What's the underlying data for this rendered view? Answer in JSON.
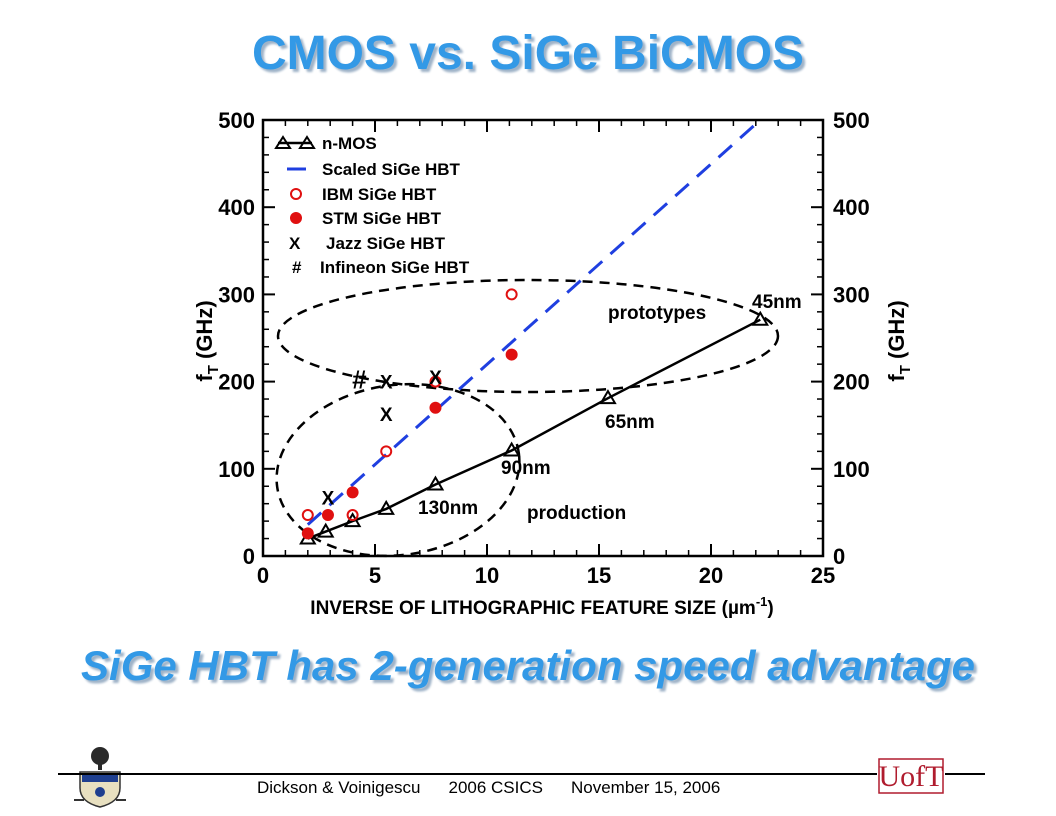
{
  "slide": {
    "title": "CMOS vs. SiGe BiCMOS",
    "subtitle": "SiGe HBT has 2-generation speed advantage"
  },
  "footer": {
    "authors": "Dickson & Voinigescu",
    "conference": "2006 CSICS",
    "date": "November 15, 2006"
  },
  "logos": {
    "uoft_text": "UofT",
    "uoft_color": "#b01c2e"
  },
  "chart_data": {
    "type": "scatter",
    "xlabel": "INVERSE OF LITHOGRAPHIC FEATURE SIZE (µm",
    "xlabel_exp": "-1",
    "ylabel": "f",
    "ylabel_sub": "T",
    "ylabel_rest": " (GHz)",
    "xlim": [
      0,
      25
    ],
    "ylim": [
      0,
      500
    ],
    "xticks": [
      0,
      5,
      10,
      15,
      20,
      25
    ],
    "yticks": [
      0,
      100,
      200,
      300,
      400,
      500
    ],
    "legend_position": "top-left",
    "series": [
      {
        "name": "n-MOS",
        "marker": "triangle-line",
        "color": "#000000",
        "points": [
          [
            2,
            20
          ],
          [
            2.8,
            28
          ],
          [
            4,
            40
          ],
          [
            5.5,
            54
          ],
          [
            7.7,
            82
          ],
          [
            11.1,
            121
          ],
          [
            15.4,
            181
          ],
          [
            22.2,
            271
          ]
        ]
      },
      {
        "name": "Scaled SiGe HBT",
        "marker": "dashed-line",
        "color": "#1f3fe0",
        "points": [
          [
            2,
            36
          ],
          [
            22.2,
            500
          ]
        ]
      },
      {
        "name": "IBM SiGe HBT",
        "marker": "open-circle",
        "color": "#e01010",
        "points": [
          [
            2,
            47
          ],
          [
            4,
            47
          ],
          [
            5.5,
            120
          ],
          [
            7.7,
            200
          ],
          [
            11.1,
            300
          ]
        ]
      },
      {
        "name": "STM SiGe HBT",
        "marker": "filled-circle",
        "color": "#e01010",
        "points": [
          [
            2,
            26
          ],
          [
            2.9,
            47
          ],
          [
            4,
            73
          ],
          [
            7.7,
            170
          ],
          [
            11.1,
            231
          ]
        ]
      },
      {
        "name": "Jazz SiGe HBT",
        "marker": "x",
        "glyph": "X",
        "color": "#000000",
        "points": [
          [
            2.9,
            67
          ],
          [
            5.5,
            200
          ],
          [
            5.5,
            163
          ],
          [
            7.7,
            205
          ]
        ]
      },
      {
        "name": "Infineon SiGe HBT",
        "marker": "hash",
        "glyph": "#",
        "color": "#000000",
        "points": [
          [
            4.3,
            200
          ]
        ]
      }
    ],
    "legend_glyphs": [
      "X",
      "#"
    ],
    "node_labels": [
      "130nm",
      "90nm",
      "65nm",
      "45nm"
    ],
    "region_labels": [
      "prototypes",
      "production"
    ]
  }
}
